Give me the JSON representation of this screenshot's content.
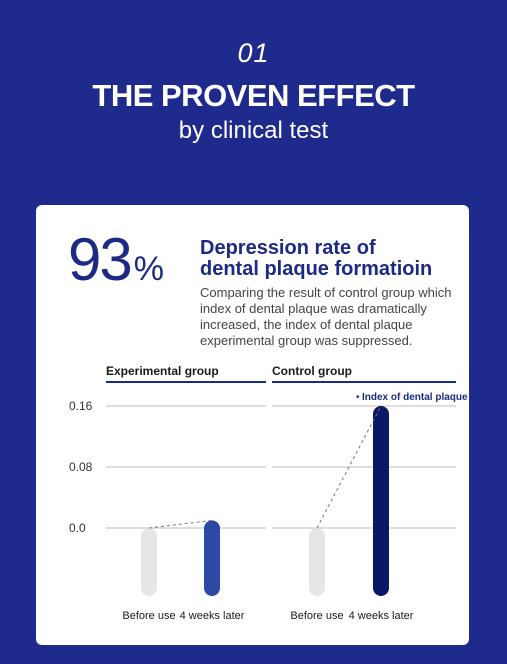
{
  "header": {
    "number": "01",
    "title": "THE PROVEN EFFECT",
    "subtitle": "by clinical test"
  },
  "stat": {
    "value": "93",
    "unit": "%",
    "headline_line1": "Depression rate of",
    "headline_line2": "dental plaque formatioin",
    "description": "Comparing the result of control group which index of dental plaque was dramatically increased, the index of dental plaque experimental group was suppressed."
  },
  "colors": {
    "background": "#1e2a8c",
    "card": "#ffffff",
    "accent_dark": "#1c2a84",
    "bar_before": "#e6e6e6",
    "bar_experimental_after": "#2c4aa4",
    "bar_control_after": "#0c1766"
  },
  "chart_data": {
    "type": "bar",
    "groups": [
      "Experimental group",
      "Control group"
    ],
    "categories": [
      "Before use",
      "4 weeks later"
    ],
    "series": [
      {
        "name": "Experimental group",
        "values": [
          0.0,
          0.01
        ]
      },
      {
        "name": "Control group",
        "values": [
          0.0,
          0.16
        ]
      }
    ],
    "yticks": [
      "0.16",
      "0.08",
      "0.0"
    ],
    "ylim": [
      0.0,
      0.16
    ],
    "annotation": "Index of dental plaque",
    "grid": true
  }
}
